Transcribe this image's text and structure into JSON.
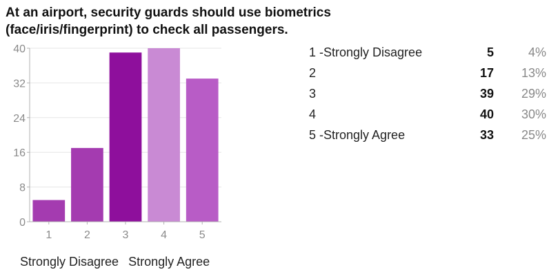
{
  "title": "At an airport, security guards should use biometrics (face/iris/fingerprint) to check all passengers.",
  "chart_data": {
    "type": "bar",
    "categories": [
      "1",
      "2",
      "3",
      "4",
      "5"
    ],
    "values": [
      5,
      17,
      39,
      40,
      33
    ],
    "yticks": [
      "0",
      "8",
      "16",
      "24",
      "32",
      "40"
    ],
    "ylim": [
      0,
      40
    ],
    "colors": [
      "#a43bb0",
      "#a43bb0",
      "#8e0f9c",
      "#c98ad4",
      "#b85cc6"
    ],
    "axis_end_labels": [
      "Strongly Disagree",
      "Strongly Agree"
    ]
  },
  "table": {
    "rows": [
      {
        "label": "1 -Strongly Disagree",
        "count": "5",
        "percent": "4%"
      },
      {
        "label": "2",
        "count": "17",
        "percent": "13%"
      },
      {
        "label": "3",
        "count": "39",
        "percent": "29%"
      },
      {
        "label": "4",
        "count": "40",
        "percent": "30%"
      },
      {
        "label": "5 -Strongly Agree",
        "count": "33",
        "percent": "25%"
      }
    ]
  }
}
